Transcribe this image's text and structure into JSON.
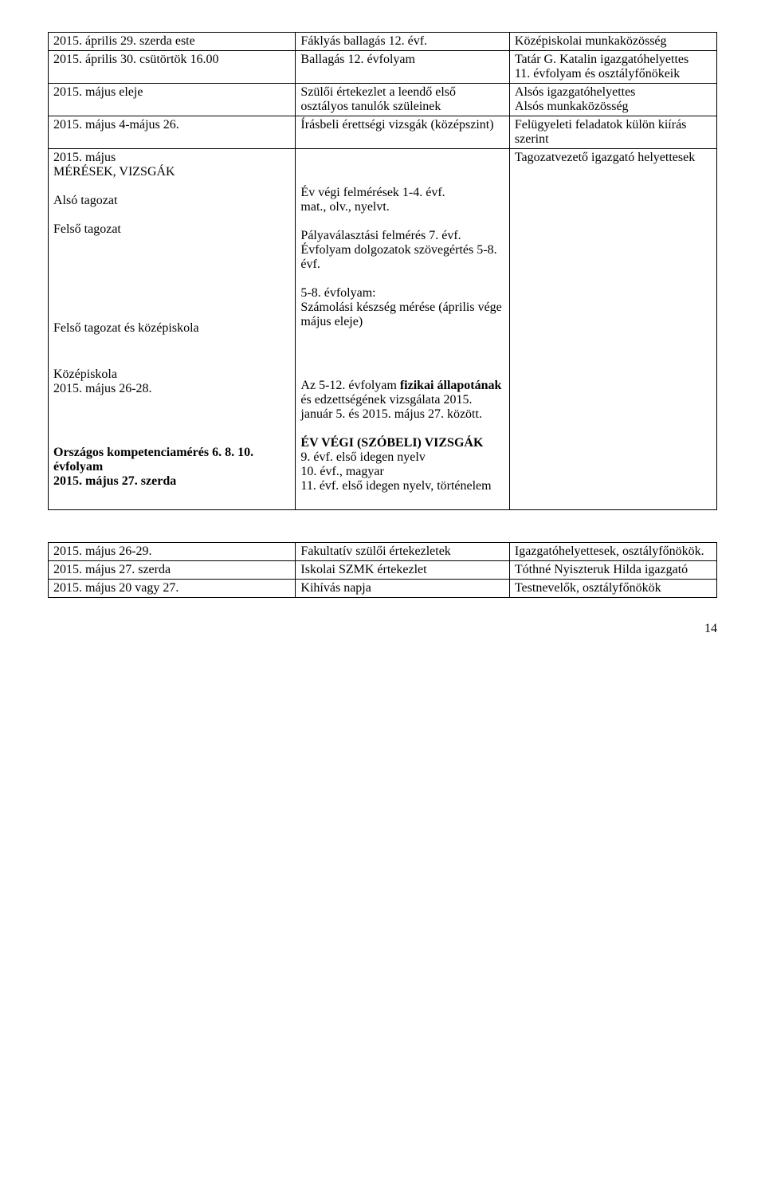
{
  "table1": {
    "rows": [
      {
        "c1": "2015. április 29. szerda este",
        "c2": "Fáklyás ballagás 12. évf.",
        "c3": "Középiskolai munkaközösség"
      },
      {
        "c1": "2015. április 30. csütörtök 16.00",
        "c2": "Ballagás 12. évfolyam",
        "c3": "Tatár G. Katalin igazgatóhelyettes\n11. évfolyam és osztályfőnökeik"
      },
      {
        "c1": "2015. május eleje",
        "c2": "Szülői értekezlet a leendő első osztályos tanulók szüleinek",
        "c3": "Alsós igazgatóhelyettes\nAlsós munkaközösség"
      },
      {
        "c1": "2015. május 4-május 26.",
        "c2": "Írásbeli érettségi vizsgák (középszint)",
        "c3": "Felügyeleti feladatok külön kiírás szerint"
      }
    ],
    "mergedRow": {
      "col1_blocks": [
        {
          "line1": "2015. május",
          "line2": "MÉRÉSEK, VIZSGÁK"
        },
        {
          "line1": "Alsó tagozat"
        },
        {
          "line1": "Felső tagozat"
        },
        {
          "spacerBlocks": 4
        },
        {
          "line1": "Felső tagozat és középiskola"
        },
        {
          "spacerBlocks": 1
        },
        {
          "line1": "Középiskola",
          "line2": "2015. május 26-28."
        },
        {
          "spacerBlocks": 2
        },
        {
          "line1_html": "<span class=\"b\">Országos kompetenciamérés 6. 8. 10. évfolyam</span>",
          "line2_html": "<span class=\"b\">2015. május 27. szerda</span>"
        }
      ],
      "col2_blocks": [
        {
          "spacerBlocks": 2
        },
        {
          "line1": "Év végi felmérések 1-4. évf.",
          "line2": "mat., olv., nyelvt."
        },
        {
          "line1": "Pályaválasztási felmérés 7. évf.",
          "line2": "Évfolyam dolgozatok szövegértés 5-8. évf."
        },
        {
          "line1": "5-8. évfolyam:",
          "line2": "Számolási készség mérése (április vége május eleje)"
        },
        {
          "spacerBlocks": 2
        },
        {
          "line1_html": "Az 5-12. évfolyam <span class=\"b\">fizikai állapotának</span> és edzettségének vizsgálata 2015. január 5. és 2015. május 27. között."
        },
        {
          "line1_html": "<span class=\"b\">ÉV VÉGI (SZÓBELI) VIZSGÁK</span>",
          "line2": "9. évf. első idegen nyelv\n10. évf., magyar\n11. évf. első idegen nyelv, történelem"
        }
      ],
      "col3_text": "Tagozatvezető igazgató helyettesek"
    }
  },
  "table2": {
    "rows": [
      {
        "c1": "2015. május 26-29.",
        "c2": "Fakultatív szülői értekezletek",
        "c3": "Igazgatóhelyettesek, osztályfőnökök."
      },
      {
        "c1": "2015. május 27. szerda",
        "c2": "Iskolai SZMK értekezlet",
        "c3": "Tóthné Nyiszteruk Hilda igazgató"
      },
      {
        "c1": "2015. május 20 vagy 27.",
        "c2": "Kihívás napja",
        "c3": "Testnevelők, osztályfőnökök"
      }
    ]
  },
  "pageNumber": "14"
}
